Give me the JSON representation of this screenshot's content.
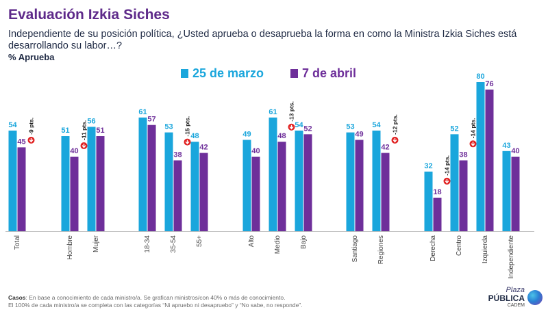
{
  "header": {
    "title": "Evaluación Izkia Siches",
    "question": "Independiente de su posición política, ¿Usted aprueba o desaprueba la forma en como la Ministra Izkia Siches está desarrollando su labor…?",
    "metric": "% Aprueba"
  },
  "legend": [
    {
      "label": "25 de marzo",
      "color": "#1aa6dc"
    },
    {
      "label": "7 de abril",
      "color": "#6e2f9a"
    }
  ],
  "colors": {
    "series1": "#1aa6dc",
    "series2": "#6e2f9a",
    "series1_label": "#1aa6dc",
    "series2_label": "#6e2f9a",
    "drop_badge": "#e02020"
  },
  "chart_data": {
    "type": "bar",
    "ylim": [
      0,
      85
    ],
    "series": [
      {
        "name": "25 de marzo",
        "values": [
          54,
          51,
          56,
          61,
          53,
          48,
          49,
          61,
          54,
          53,
          54,
          32,
          52,
          80,
          43
        ]
      },
      {
        "name": "7 de abril",
        "values": [
          45,
          40,
          51,
          57,
          38,
          42,
          40,
          48,
          52,
          49,
          42,
          18,
          38,
          76,
          40
        ]
      }
    ],
    "categories": [
      "Total",
      "Hombre",
      "Mujer",
      "18-34",
      "35-54",
      "55+",
      "Alto",
      "Medio",
      "Bajo",
      "Santiago",
      "Regiones",
      "Derecha",
      "Centro",
      "Izquierda",
      "Independiente"
    ],
    "changes": [
      {
        "index": 0,
        "label": "-9 pts."
      },
      {
        "index": 1,
        "label": "-11 pts."
      },
      {
        "index": 4,
        "label": "-15 pts."
      },
      {
        "index": 7,
        "label": "-13 pts."
      },
      {
        "index": 10,
        "label": "-12 pts."
      },
      {
        "index": 11,
        "label": "-14 pts."
      },
      {
        "index": 12,
        "label": "-14 pts."
      }
    ]
  },
  "footer": {
    "casos_label": "Casos",
    "line1": ": En base a conocimiento de cada ministro/a. Se grafican ministros/con 40% o más de conocimiento.",
    "line2": "El 100% de cada ministro/a se completa con las categorías “Ni apruebo ni desapruebo” y “No sabe, no responde”."
  },
  "logo": {
    "plaza": "Plaza",
    "publica": "PÚBLICA",
    "cadem": "CADEM"
  }
}
